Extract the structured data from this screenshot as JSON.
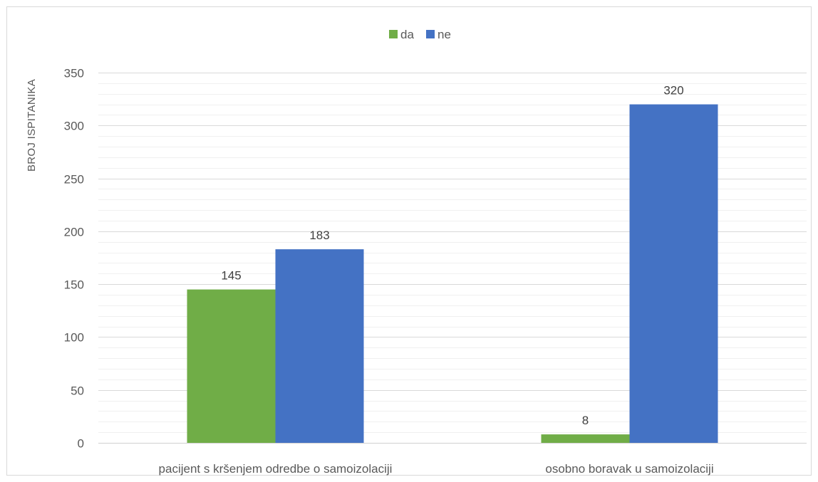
{
  "chart_data": {
    "type": "bar",
    "title": "",
    "xlabel": "",
    "ylabel": "BROJ ISPITANIKA",
    "ylim": [
      0,
      350
    ],
    "ytick_step": 50,
    "minor_ytick_step": 10,
    "grid": true,
    "legend_position": "top",
    "categories": [
      "pacijent s kršenjem odredbe o samoizolaciji",
      "osobno boravak u samoizolaciji"
    ],
    "series": [
      {
        "name": "da",
        "color": "#70ad47",
        "values": [
          145,
          8
        ]
      },
      {
        "name": "ne",
        "color": "#4472c4",
        "values": [
          183,
          320
        ]
      }
    ]
  }
}
